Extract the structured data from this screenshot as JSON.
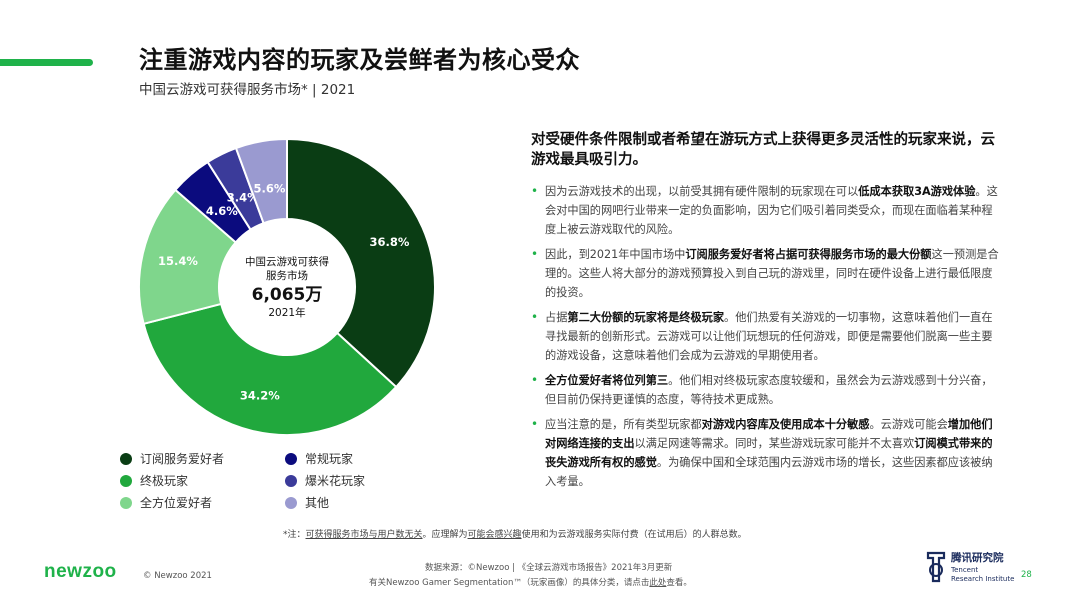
{
  "header": {
    "title": "注重游戏内容的玩家及尝鲜者为核心受众",
    "subtitle": "中国云游戏可获得服务市场* | 2021"
  },
  "colors": {
    "accent": "#1fb24a",
    "dark_green": "#0a3d14",
    "green": "#21a83d",
    "light_green": "#7fd68c",
    "navy": "#0b0b7e",
    "indigo": "#3b3b9a",
    "lavender": "#9a9ad0"
  },
  "chart_data": {
    "type": "pie",
    "donut": true,
    "center": {
      "label_line1": "中国云游戏可获得",
      "label_line2": "服务市场",
      "value": "6,065万",
      "year": "2021年"
    },
    "slices": [
      {
        "name": "订阅服务爱好者",
        "value": 36.8,
        "label": "36.8%",
        "color": "#0a3d14"
      },
      {
        "name": "终极玩家",
        "value": 34.2,
        "label": "34.2%",
        "color": "#21a83d"
      },
      {
        "name": "全方位爱好者",
        "value": 15.4,
        "label": "15.4%",
        "color": "#7fd68c"
      },
      {
        "name": "常规玩家",
        "value": 4.6,
        "label": "4.6%",
        "color": "#0b0b7e"
      },
      {
        "name": "爆米花玩家",
        "value": 3.4,
        "label": "3.4%",
        "color": "#3b3b9a"
      },
      {
        "name": "其他",
        "value": 5.6,
        "label": "5.6%",
        "color": "#9a9ad0"
      }
    ],
    "legend": [
      {
        "name": "订阅服务爱好者",
        "color": "#0a3d14"
      },
      {
        "name": "常规玩家",
        "color": "#0b0b7e"
      },
      {
        "name": "终极玩家",
        "color": "#21a83d"
      },
      {
        "name": "爆米花玩家",
        "color": "#3b3b9a"
      },
      {
        "name": "全方位爱好者",
        "color": "#7fd68c"
      },
      {
        "name": "其他",
        "color": "#9a9ad0"
      }
    ],
    "legend_placement": "bottom"
  },
  "right": {
    "headline": "对受硬件条件限制或者希望在游玩方式上获得更多灵活性的玩家来说，云游戏最具吸引力。",
    "bullets": [
      {
        "p1": "因为云游戏技术的出现，以前受其拥有硬件限制的玩家现在可以",
        "b1": "低成本获取3A游戏体验",
        "p2": "。这会对中国的网吧行业带来一定的负面影响，因为它们吸引着同类受众，而现在面临着某种程度上被云游戏取代的风险。",
        "b2": "",
        "p3": ""
      },
      {
        "p1": "因此，到2021年中国市场中",
        "b1": "订阅服务爱好者将占据可获得服务市场的最大份额",
        "p2": "这一预测是合理的。这些人将大部分的游戏预算投入到自己玩的游戏里，同时在硬件设备上进行最低限度的投资。",
        "b2": "",
        "p3": ""
      },
      {
        "p1": "占据",
        "b1": "第二大份额的玩家将是终极玩家",
        "p2": "。他们热爱有关游戏的一切事物，这意味着他们一直在寻找最新的创新形式。云游戏可以让他们玩想玩的任何游戏，即便是需要他们脱离一些主要的游戏设备，这意味着他们会成为云游戏的早期使用者。",
        "b2": "",
        "p3": ""
      },
      {
        "p1": "",
        "b1": "全方位爱好者将位列第三",
        "p2": "。他们相对终极玩家态度较缓和，虽然会为云游戏感到十分兴奋，但目前仍保持更谨慎的态度，等待技术更成熟。",
        "b2": "",
        "p3": ""
      },
      {
        "p1": "应当注意的是，所有类型玩家都",
        "b1": "对游戏内容库及使用成本十分敏感",
        "p2": "。云游戏可能会",
        "b2": "增加他们对网络连接的支出",
        "p3": "以满足网速等需求。同时，某些游戏玩家可能并不太喜欢",
        "b3": "订阅模式带来的丧失游戏所有权的感觉",
        "p4": "。为确保中国和全球范围内云游戏市场的增长，这些因素都应该被纳入考量。"
      }
    ]
  },
  "footer": {
    "note_prefix": "*注：",
    "note_u1": "可获得服务市场与用户数无关",
    "note_mid": "。应理解为",
    "note_u2": "可能会感兴趣",
    "note_suffix": "使用和为云游戏服务实际付费（在试用后）的人群总数。",
    "source_line1": "数据来源：©Newzoo | 《全球云游戏市场报告》2021年3月更新",
    "source_line2_a": "有关Newzoo Gamer Segmentation™（玩家画像）的具体分类，请点击",
    "source_line2_link": "此处",
    "source_line2_b": "查看。",
    "brand": "newzoo",
    "copyright": "© Newzoo 2021",
    "tencent_cn": "腾讯研究院",
    "tencent_en1": "Tencent",
    "tencent_en2": "Research Institute",
    "page": "28"
  }
}
